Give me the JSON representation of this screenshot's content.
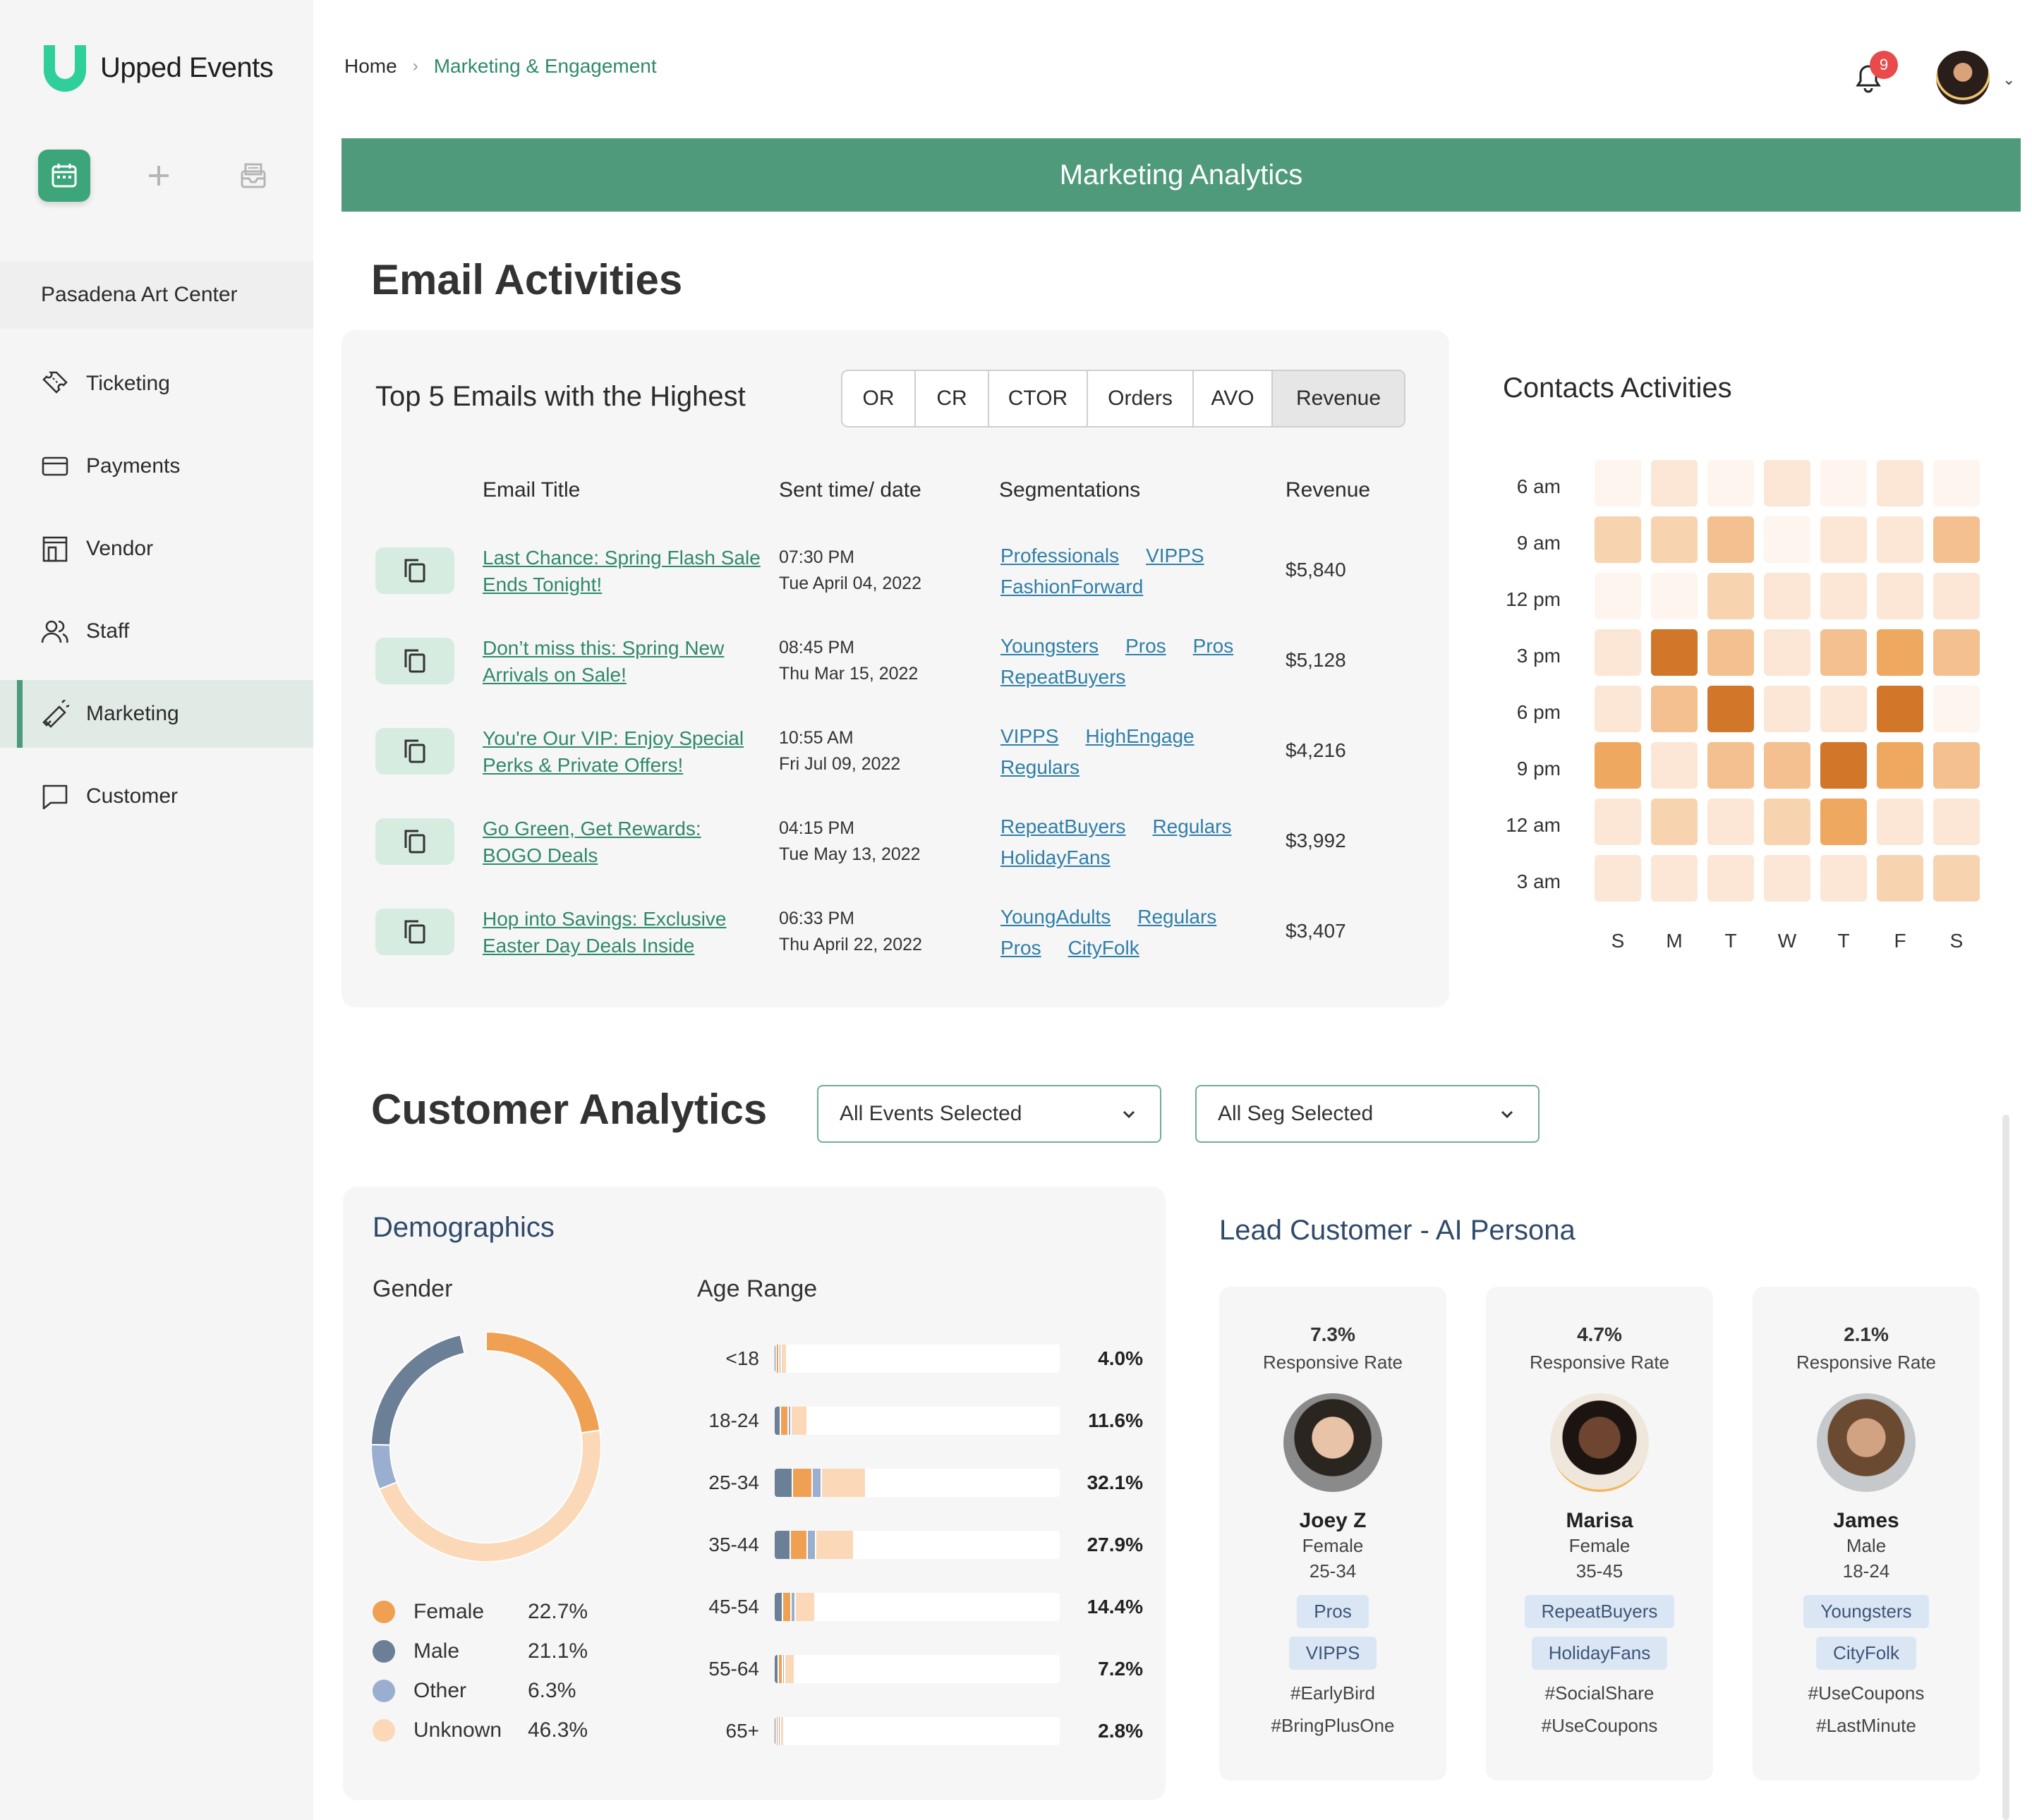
{
  "app": {
    "name": "Upped Events",
    "venue": "Pasadena Art Center"
  },
  "colors": {
    "brand": "#4f9a7b",
    "link": "#2f8a69",
    "seg_link": "#2f7fa8",
    "female": "#f0a053",
    "male": "#6b7f96",
    "other": "#9aaecf",
    "unknown": "#fbd9b8"
  },
  "sidebar": {
    "items": [
      {
        "label": "Ticketing",
        "icon": "ticket-icon"
      },
      {
        "label": "Payments",
        "icon": "credit-card-icon"
      },
      {
        "label": "Vendor",
        "icon": "store-icon"
      },
      {
        "label": "Staff",
        "icon": "users-icon"
      },
      {
        "label": "Marketing",
        "icon": "megaphone-icon"
      },
      {
        "label": "Customer",
        "icon": "chat-icon"
      }
    ],
    "active": "Marketing"
  },
  "breadcrumb": {
    "home": "Home",
    "current": "Marketing & Engagement"
  },
  "notifications": {
    "count": "9"
  },
  "banner": {
    "title": "Marketing Analytics"
  },
  "email": {
    "heading": "Email Activities",
    "card_title": "Top 5 Emails with the Highest",
    "tabs": [
      "OR",
      "CR",
      "CTOR",
      "Orders",
      "AVO",
      "Revenue"
    ],
    "selected_tab": "Revenue",
    "columns": [
      "Email Title",
      "Sent time/ date",
      "Segmentations",
      "Revenue"
    ],
    "rows": [
      {
        "title": "Last Chance: Spring Flash Sale Ends Tonight!",
        "time": "07:30 PM",
        "date": "Tue April 04, 2022",
        "segs": [
          "Professionals",
          "VIPPS",
          "FashionForward"
        ],
        "revenue": "$5,840"
      },
      {
        "title": "Don’t miss this: Spring New Arrivals on Sale!",
        "time": "08:45 PM",
        "date": "Thu Mar 15, 2022",
        "segs": [
          "Youngsters",
          "Pros",
          "Pros",
          "RepeatBuyers"
        ],
        "revenue": "$5,128"
      },
      {
        "title": "You're Our VIP: Enjoy Special Perks & Private Offers!",
        "time": "10:55 AM",
        "date": "Fri Jul 09, 2022",
        "segs": [
          "VIPPS",
          "HighEngage",
          "Regulars"
        ],
        "revenue": "$4,216"
      },
      {
        "title": "Go Green, Get Rewards: BOGO Deals",
        "time": "04:15 PM",
        "date": "Tue May 13, 2022",
        "segs": [
          "RepeatBuyers",
          "Regulars",
          "HolidayFans"
        ],
        "revenue": "$3,992"
      },
      {
        "title": "Hop into Savings: Exclusive Easter Day Deals Inside",
        "time": "06:33 PM",
        "date": "Thu April 22, 2022",
        "segs": [
          "YoungAdults",
          "Regulars",
          "Pros",
          "CityFolk"
        ],
        "revenue": "$3,407"
      }
    ]
  },
  "contacts": {
    "title": "Contacts Activities",
    "times": [
      "6 am",
      "9 am",
      "12 pm",
      "3 pm",
      "6 pm",
      "9 pm",
      "12 am",
      "3 am"
    ],
    "days": [
      "S",
      "M",
      "T",
      "W",
      "T",
      "F",
      "S"
    ],
    "levels": [
      [
        0,
        1,
        0,
        1,
        0,
        1,
        0
      ],
      [
        2,
        2,
        3,
        0,
        1,
        1,
        3
      ],
      [
        0,
        0,
        2,
        1,
        1,
        1,
        1
      ],
      [
        1,
        5,
        3,
        1,
        3,
        4,
        3
      ],
      [
        1,
        3,
        5,
        1,
        1,
        5,
        0
      ],
      [
        4,
        1,
        3,
        3,
        5,
        4,
        3
      ],
      [
        1,
        2,
        1,
        2,
        4,
        1,
        1
      ],
      [
        1,
        1,
        1,
        1,
        1,
        2,
        2
      ]
    ]
  },
  "customer": {
    "heading": "Customer Analytics",
    "events_filter": "All Events Selected",
    "seg_filter": "All Seg Selected"
  },
  "demographics": {
    "title": "Demographics",
    "gender_title": "Gender",
    "age_title": "Age Range",
    "gender": [
      {
        "label": "Female",
        "value": "22.7%",
        "pct": 22.7,
        "color": "#f0a053"
      },
      {
        "label": "Unknown",
        "value": "46.3%",
        "pct": 46.3,
        "color": "#fbd9b8"
      },
      {
        "label": "Other",
        "value": "6.3%",
        "pct": 6.3,
        "color": "#9aaecf"
      },
      {
        "label": "Male",
        "value": "21.1%",
        "pct": 21.1,
        "color": "#6b7f96"
      }
    ],
    "legend": [
      {
        "label": "Female",
        "value": "22.7%",
        "color": "#f0a053"
      },
      {
        "label": "Male",
        "value": "21.1%",
        "color": "#6b7f96"
      },
      {
        "label": "Other",
        "value": "6.3%",
        "color": "#9aaecf"
      },
      {
        "label": "Unknown",
        "value": "46.3%",
        "color": "#fbd9b8"
      }
    ],
    "ages": [
      {
        "label": "<18",
        "value": "4.0%",
        "pct": 4.0
      },
      {
        "label": "18-24",
        "value": "11.6%",
        "pct": 11.6
      },
      {
        "label": "25-34",
        "value": "32.1%",
        "pct": 32.1
      },
      {
        "label": "35-44",
        "value": "27.9%",
        "pct": 27.9
      },
      {
        "label": "45-54",
        "value": "14.4%",
        "pct": 14.4
      },
      {
        "label": "55-64",
        "value": "7.2%",
        "pct": 7.2
      },
      {
        "label": "65+",
        "value": "2.8%",
        "pct": 2.8
      }
    ]
  },
  "personas": {
    "title": "Lead Customer - AI Persona",
    "items": [
      {
        "rate": "7.3%",
        "rate_label": "Responsive Rate",
        "name": "Joey Z",
        "gender": "Female",
        "age": "25-34",
        "tags": [
          "Pros",
          "VIPPS"
        ],
        "hashtags": [
          "#EarlyBird",
          "#BringPlusOne"
        ]
      },
      {
        "rate": "4.7%",
        "rate_label": "Responsive Rate",
        "name": "Marisa",
        "gender": "Female",
        "age": "35-45",
        "tags": [
          "RepeatBuyers",
          "HolidayFans"
        ],
        "hashtags": [
          "#SocialShare",
          "#UseCoupons"
        ]
      },
      {
        "rate": "2.1%",
        "rate_label": "Responsive Rate",
        "name": "James",
        "gender": "Male",
        "age": "18-24",
        "tags": [
          "Youngsters",
          "CityFolk"
        ],
        "hashtags": [
          "#UseCoupons",
          "#LastMinute"
        ]
      }
    ]
  }
}
